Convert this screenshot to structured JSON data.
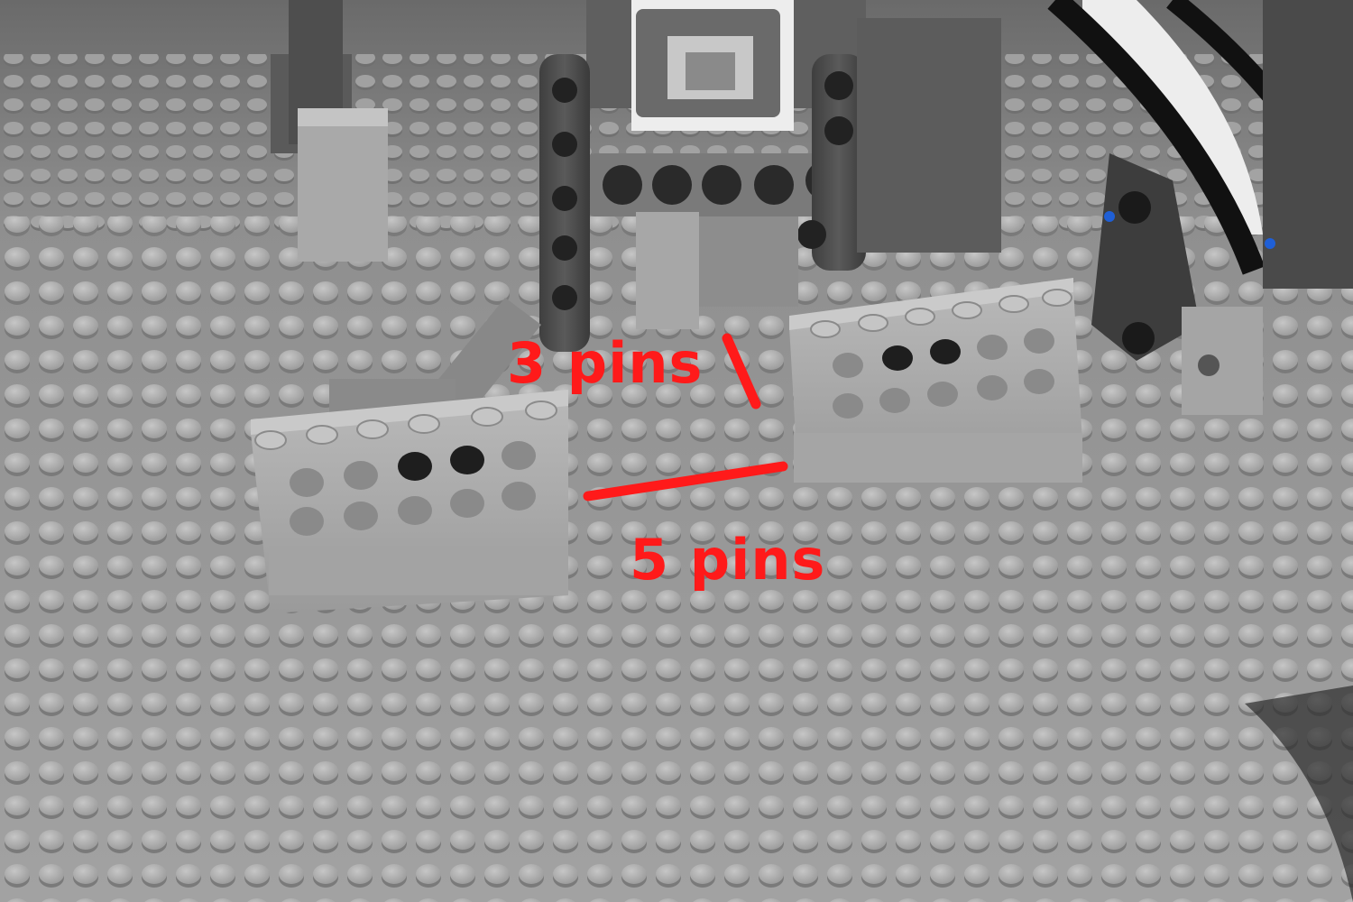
{
  "annotations": {
    "label_top": "3 pins",
    "label_bottom": "5 pins"
  },
  "colors": {
    "annotation": "#ff1a1a",
    "baseplate": "#9c9c9c",
    "baseplate_shadow": "#7e7e7e",
    "stud_top": "#b9b9b9",
    "brick_light": "#aeaeae",
    "brick_dark": "#5c5c5c",
    "technic_dark": "#4a4a4a",
    "hole": "#222222",
    "cable": "#111111",
    "white_part": "#f2f2f2",
    "blue_pin": "#1f5fd6"
  },
  "scene": {
    "subject": "lego-baseplate-with-technic-bricks",
    "icons": [
      "baseplate",
      "technic-brick",
      "nxt-motor",
      "cable"
    ]
  }
}
